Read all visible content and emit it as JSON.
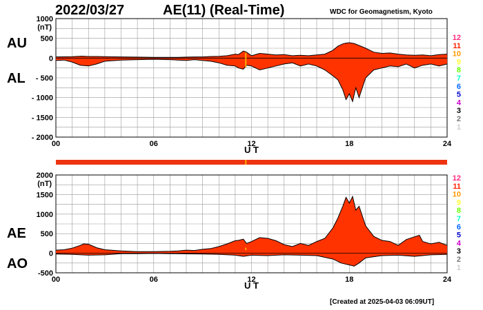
{
  "header": {
    "date": "2022/03/27",
    "title": "AE(11) (Real-Time)",
    "source": "WDC for Geomagnetism, Kyoto"
  },
  "footer": "[Created at 2025-04-03 06:09UT]",
  "colors": {
    "fill": "#ff3300",
    "outline": "#000000",
    "grid": "#999999",
    "strip": "#ee3311",
    "marker": "#ffaa00"
  },
  "legend": {
    "items": [
      {
        "label": "12",
        "color": "#ff2a7f"
      },
      {
        "label": "11",
        "color": "#ff2200"
      },
      {
        "label": "10",
        "color": "#ff9900"
      },
      {
        "label": "9",
        "color": "#ffff33"
      },
      {
        "label": "8",
        "color": "#66ff00"
      },
      {
        "label": "7",
        "color": "#00ffcc"
      },
      {
        "label": "6",
        "color": "#0066ff"
      },
      {
        "label": "5",
        "color": "#0000cc"
      },
      {
        "label": "4",
        "color": "#cc00cc"
      },
      {
        "label": "3",
        "color": "#000000"
      },
      {
        "label": "2",
        "color": "#777777"
      },
      {
        "label": "1",
        "color": "#cccccc"
      }
    ]
  },
  "chart_data": [
    {
      "type": "area",
      "panel": "top",
      "series_labels": [
        "AU",
        "AL"
      ],
      "ylabel": "(nT)",
      "xlabel": "U T",
      "xlim": [
        0,
        24
      ],
      "ylim": [
        -2000,
        1000
      ],
      "yticks": [
        1000,
        500,
        0,
        -500,
        -1000,
        -1500,
        -2000
      ],
      "ytick_labels": [
        "1000",
        "500",
        "0",
        "- 500",
        "- 1000",
        "- 1500",
        "- 2000"
      ],
      "xticks": [
        0,
        6,
        12,
        18,
        24
      ],
      "xtick_labels": [
        "00",
        "06",
        "12",
        "18",
        "24"
      ],
      "grid": true,
      "series": [
        {
          "name": "AU",
          "x": [
            0,
            1,
            1.6,
            2,
            2.5,
            3,
            4,
            5,
            6,
            7,
            7.5,
            8,
            8.5,
            9,
            9.5,
            10,
            10.5,
            11,
            11.2,
            11.5,
            11.7,
            12,
            12.5,
            13,
            13.5,
            14,
            14.5,
            15,
            15.5,
            16,
            16.5,
            17,
            17.3,
            17.6,
            17.8,
            18,
            18.3,
            18.6,
            19,
            19.5,
            20,
            20.5,
            21,
            21.5,
            22,
            22.5,
            23,
            23.5,
            24
          ],
          "values": [
            30,
            35,
            50,
            40,
            40,
            35,
            30,
            25,
            20,
            20,
            20,
            25,
            30,
            30,
            40,
            45,
            60,
            100,
            90,
            180,
            150,
            60,
            120,
            100,
            80,
            90,
            60,
            70,
            60,
            80,
            100,
            200,
            300,
            360,
            380,
            390,
            370,
            320,
            250,
            150,
            120,
            130,
            100,
            80,
            70,
            80,
            60,
            90,
            100
          ]
        },
        {
          "name": "AL",
          "x": [
            0,
            0.5,
            1,
            1.5,
            2,
            2.5,
            3,
            4,
            5,
            6,
            7,
            7.5,
            8,
            8.5,
            9,
            9.5,
            10,
            10.5,
            11,
            11.2,
            11.5,
            11.7,
            12,
            12.5,
            13,
            13.5,
            14,
            14.5,
            15,
            15.5,
            16,
            16.5,
            17,
            17.3,
            17.6,
            17.8,
            18,
            18.2,
            18.4,
            18.6,
            19,
            19.5,
            20,
            20.5,
            21,
            21.5,
            22,
            22.5,
            23,
            23.5,
            24
          ],
          "values": [
            -60,
            -50,
            -100,
            -180,
            -200,
            -150,
            -80,
            -50,
            -40,
            -30,
            -40,
            -50,
            -60,
            -40,
            -60,
            -80,
            -120,
            -180,
            -200,
            -250,
            -280,
            -180,
            -200,
            -300,
            -250,
            -200,
            -150,
            -120,
            -200,
            -150,
            -200,
            -300,
            -450,
            -550,
            -800,
            -1050,
            -900,
            -1100,
            -750,
            -1000,
            -500,
            -300,
            -250,
            -200,
            -220,
            -150,
            -250,
            -180,
            -150,
            -200,
            -150
          ]
        }
      ]
    },
    {
      "type": "area",
      "panel": "bottom",
      "series_labels": [
        "AE",
        "AO"
      ],
      "ylabel": "(nT)",
      "xlabel": "U T",
      "xlim": [
        0,
        24
      ],
      "ylim": [
        -500,
        2000
      ],
      "yticks": [
        2000,
        1500,
        1000,
        500,
        0,
        -500
      ],
      "ytick_labels": [
        "2000",
        "1500",
        "1000",
        "500",
        "0",
        "-500"
      ],
      "xticks": [
        0,
        6,
        12,
        18,
        24
      ],
      "xtick_labels": [
        "00",
        "06",
        "12",
        "18",
        "24"
      ],
      "grid": true,
      "series": [
        {
          "name": "AE",
          "x": [
            0,
            0.5,
            1,
            1.5,
            1.7,
            2,
            2.5,
            3,
            4,
            5,
            6,
            7,
            7.5,
            8,
            8.5,
            9,
            9.5,
            10,
            10.5,
            11,
            11.2,
            11.5,
            11.7,
            12,
            12.5,
            13,
            13.5,
            14,
            14.5,
            15,
            15.5,
            16,
            16.5,
            17,
            17.3,
            17.6,
            17.8,
            18,
            18.2,
            18.4,
            18.6,
            19,
            19.5,
            20,
            20.5,
            21,
            21.5,
            22,
            22.3,
            22.5,
            23,
            23.5,
            24
          ],
          "values": [
            80,
            90,
            130,
            200,
            240,
            230,
            140,
            90,
            60,
            40,
            40,
            50,
            60,
            80,
            70,
            100,
            120,
            170,
            240,
            320,
            330,
            360,
            250,
            300,
            400,
            380,
            320,
            220,
            170,
            250,
            200,
            300,
            380,
            650,
            900,
            1200,
            1430,
            1280,
            1450,
            1100,
            1200,
            700,
            430,
            330,
            300,
            200,
            350,
            420,
            460,
            300,
            240,
            280,
            200
          ]
        },
        {
          "name": "AO",
          "x": [
            0,
            1,
            2,
            3,
            4,
            5,
            6,
            7,
            8,
            9,
            10,
            11,
            11.5,
            12,
            13,
            14,
            15,
            16,
            17,
            17.5,
            18,
            18.3,
            18.6,
            19,
            20,
            21,
            22,
            23,
            24
          ],
          "values": [
            -20,
            -30,
            -50,
            -40,
            -10,
            -10,
            -5,
            -10,
            -15,
            -20,
            -30,
            -50,
            -80,
            -50,
            -60,
            -40,
            -50,
            -60,
            -150,
            -250,
            -300,
            -330,
            -250,
            -120,
            -60,
            -50,
            -80,
            -40,
            -30
          ]
        }
      ]
    }
  ]
}
